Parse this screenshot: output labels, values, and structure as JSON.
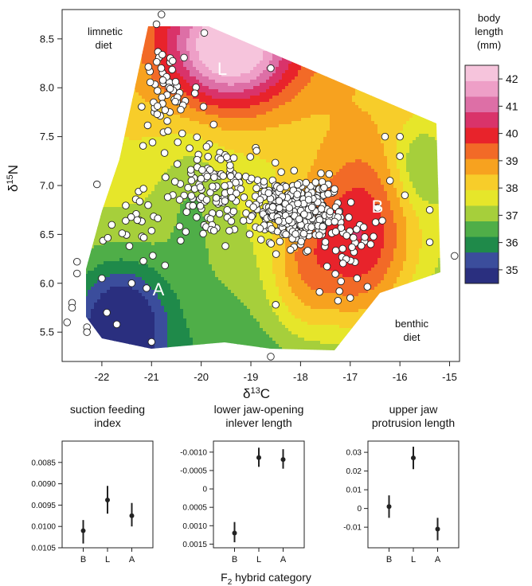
{
  "chart_data": [
    {
      "type": "heatmap",
      "subtype": "contour scatter",
      "xlabel": "δ 13C",
      "ylabel": "δ 15N",
      "xlim": [
        -22.8,
        -14.8
      ],
      "ylim": [
        5.2,
        8.8
      ],
      "x_ticks": [
        -22,
        -21,
        -20,
        -19,
        -18,
        -17,
        -16,
        -15
      ],
      "y_ticks": [
        5.5,
        6.0,
        6.5,
        7.0,
        7.5,
        8.0,
        8.5
      ],
      "annotations": [
        "limnetic diet",
        "benthic diet",
        "L",
        "A",
        "B"
      ],
      "colorbar": {
        "title": "body length (mm)",
        "ticks": [
          42,
          41,
          40,
          39,
          38,
          37,
          36,
          35
        ],
        "range": [
          34.5,
          42.5
        ],
        "colors": [
          "#2a2f7f",
          "#3b4d9c",
          "#1f8a4a",
          "#4fae48",
          "#a6cf3b",
          "#e6e62a",
          "#f7cd2a",
          "#f7a21f",
          "#f26a27",
          "#e8232b",
          "#d9336a",
          "#dd6fa6",
          "#ee9fc7",
          "#f6c4dc"
        ]
      },
      "point_color": "#ffffff",
      "labeled_points": [
        {
          "label": "L",
          "x": -19.2,
          "y": 8.3
        },
        {
          "label": "A",
          "x": -20.5,
          "y": 5.9
        },
        {
          "label": "B",
          "x": -16.6,
          "y": 6.7
        }
      ]
    },
    {
      "type": "scatter",
      "subtype": "point-range",
      "title": "suction feeding index",
      "categories": [
        "B",
        "L",
        "A"
      ],
      "values": [
        0.0101,
        0.00938,
        0.00975
      ],
      "errors": [
        [
          0.00985,
          0.0104
        ],
        [
          0.00905,
          0.0097
        ],
        [
          0.00945,
          0.01
        ]
      ],
      "ylim_top_to_bottom": [
        0.008,
        0.0105
      ],
      "y_ticks": [
        "0.0085",
        "0.0090",
        "0.0095",
        "0.0100",
        "0.0105"
      ],
      "y_tick_values": [
        0.0085,
        0.009,
        0.0095,
        0.01,
        0.0105
      ]
    },
    {
      "type": "scatter",
      "subtype": "point-range",
      "title": "lower jaw-opening inlever length",
      "categories": [
        "B",
        "L",
        "A"
      ],
      "values": [
        0.0012,
        -0.00085,
        -0.0008
      ],
      "errors": [
        [
          0.0009,
          0.00145
        ],
        [
          -0.00112,
          -0.0006
        ],
        [
          -0.00108,
          -0.00055
        ]
      ],
      "ylim_top_to_bottom": [
        -0.0013,
        0.0016
      ],
      "y_ticks": [
        "-0.0010",
        "-0.0005",
        "0",
        "0.0005",
        "0.0010",
        "0.0015"
      ],
      "y_tick_values": [
        -0.001,
        -0.0005,
        0,
        0.0005,
        0.001,
        0.0015
      ]
    },
    {
      "type": "scatter",
      "subtype": "point-range",
      "title": "upper jaw protrusion length",
      "categories": [
        "B",
        "L",
        "A"
      ],
      "values": [
        0.001,
        0.027,
        -0.011
      ],
      "errors": [
        [
          -0.005,
          0.007
        ],
        [
          0.021,
          0.033
        ],
        [
          -0.017,
          -0.005
        ]
      ],
      "ylim": [
        -0.021,
        0.036
      ],
      "y_ticks": [
        "0.03",
        "0.02",
        "0.01",
        "0",
        "-0.01"
      ],
      "y_tick_values": [
        0.03,
        0.02,
        0.01,
        0,
        -0.01
      ]
    }
  ],
  "shared_xlabel": "F2 hybrid category"
}
